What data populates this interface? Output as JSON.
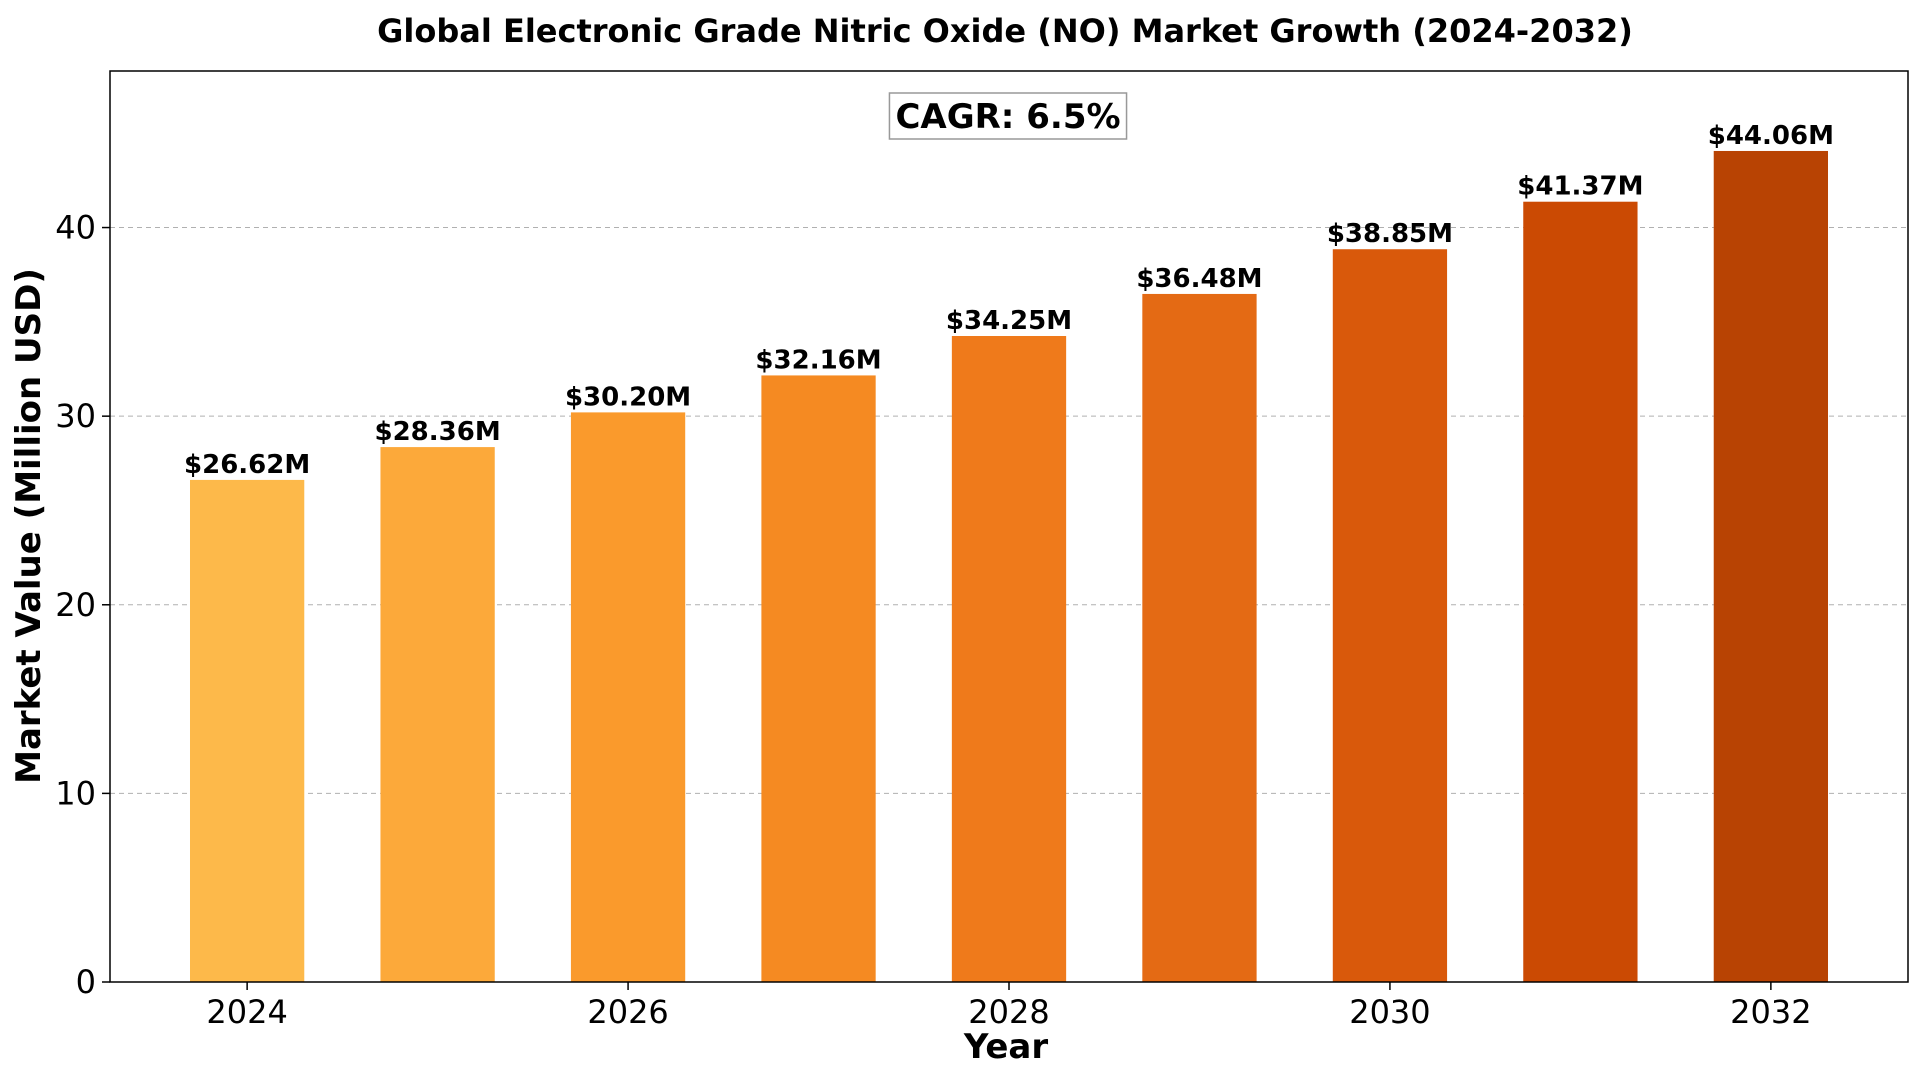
{
  "chart_data": {
    "type": "bar",
    "title": "Global Electronic Grade Nitric Oxide (NO) Market Growth (2024-2032)",
    "xlabel": "Year",
    "ylabel": "Market Value (Million USD)",
    "categories": [
      "2024",
      "2025",
      "2026",
      "2027",
      "2028",
      "2029",
      "2030",
      "2031",
      "2032"
    ],
    "values": [
      26.62,
      28.36,
      30.2,
      32.16,
      34.25,
      36.48,
      38.85,
      41.37,
      44.06
    ],
    "data_labels": [
      "$26.62M",
      "$28.36M",
      "$30.20M",
      "$32.16M",
      "$34.25M",
      "$36.48M",
      "$38.85M",
      "$41.37M",
      "$44.06M"
    ],
    "bar_colors": [
      "#FDB94A",
      "#FCA93A",
      "#FA9A2C",
      "#F58A22",
      "#EF7A1B",
      "#E46A14",
      "#D9590B",
      "#CB4A03",
      "#B84303"
    ],
    "x_ticks": [
      "2024",
      "2026",
      "2028",
      "2030",
      "2032"
    ],
    "y_ticks": [
      0,
      10,
      20,
      30,
      40
    ],
    "ylim": [
      0,
      48.3
    ],
    "grid": "y-dashed",
    "annotation": "CAGR: 6.5%"
  }
}
